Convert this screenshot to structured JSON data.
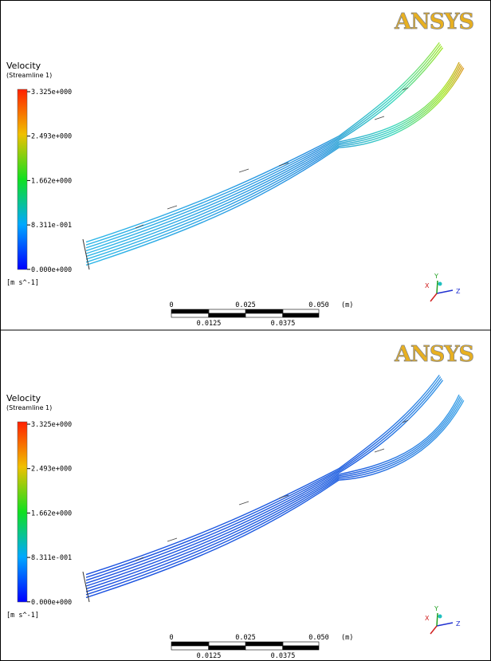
{
  "panels": [
    {
      "logo": "ANSYS",
      "legend": {
        "title": "Velocity",
        "subtitle": "(Streamline 1)",
        "ticks": [
          "3.325e+000",
          "2.493e+000",
          "1.662e+000",
          "8.311e-001",
          "0.000e+000"
        ],
        "units": "[m s^-1]"
      },
      "axes": {
        "x": "X",
        "y": "Y",
        "z": "Z"
      },
      "scale": {
        "top": [
          "0",
          "0.025",
          "0.050"
        ],
        "unit": "(m)",
        "bottom": [
          "0.0125",
          "0.0375"
        ]
      }
    },
    {
      "logo": "ANSYS",
      "legend": {
        "title": "Velocity",
        "subtitle": "(Streamline 1)",
        "ticks": [
          "3.325e+000",
          "2.493e+000",
          "1.662e+000",
          "8.311e-001",
          "0.000e+000"
        ],
        "units": "[m s^-1]"
      },
      "axes": {
        "x": "X",
        "y": "Y",
        "z": "Z"
      },
      "scale": {
        "top": [
          "0",
          "0.025",
          "0.050"
        ],
        "unit": "(m)",
        "bottom": [
          "0.0125",
          "0.0375"
        ]
      }
    }
  ]
}
